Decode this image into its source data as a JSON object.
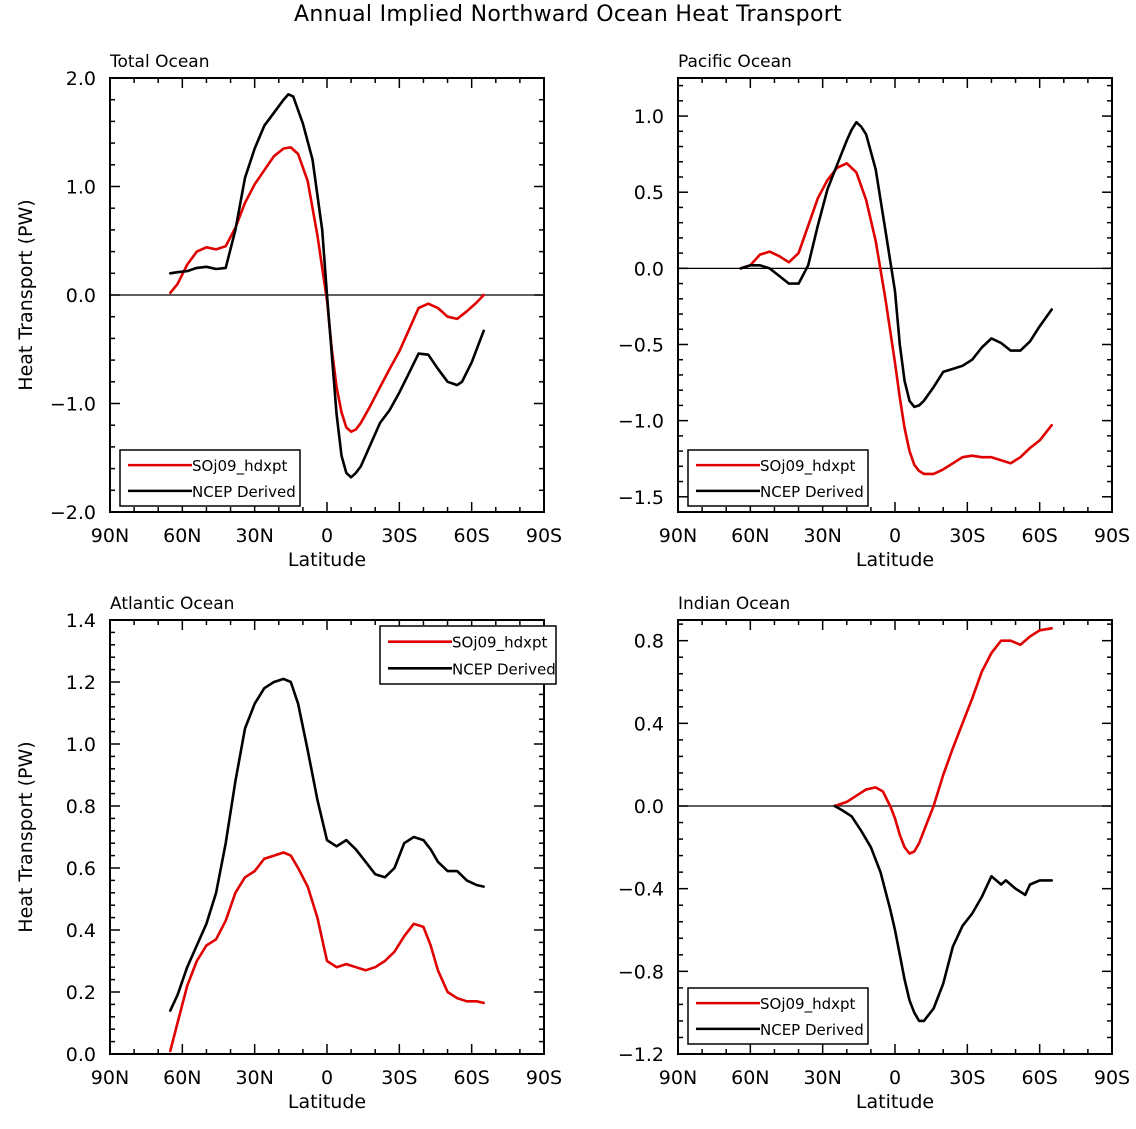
{
  "figure_title": "Annual Implied Northward Ocean Heat Transport",
  "colors": {
    "model": "#e00000",
    "obs": "#000000",
    "zero_line": "#000000"
  },
  "chart_data": [
    {
      "type": "line",
      "title": "Total Ocean",
      "xlabel": "Latitude",
      "ylabel": "Heat Transport (PW)",
      "xlim": [
        90,
        -90
      ],
      "x_ticks": [
        90,
        60,
        30,
        0,
        -30,
        -60,
        -90
      ],
      "x_tick_labels": [
        "90N",
        "60N",
        "30N",
        "0",
        "30S",
        "60S",
        "90S"
      ],
      "ylim": [
        -2.0,
        2.0
      ],
      "y_ticks": [
        -2.0,
        -1.0,
        0.0,
        1.0,
        2.0
      ],
      "y_tick_labels": [
        "−2.0",
        "−1.0",
        "0.0",
        "1.0",
        "2.0"
      ],
      "legend_position": "bottom-left",
      "series": [
        {
          "name": "SOj09_hdxpt",
          "x": [
            65,
            62,
            58,
            54,
            50,
            46,
            42,
            38,
            34,
            30,
            26,
            22,
            18,
            15,
            12,
            8,
            4,
            0,
            -2,
            -4,
            -6,
            -8,
            -10,
            -12,
            -14,
            -18,
            -22,
            -26,
            -30,
            -34,
            -38,
            -42,
            -46,
            -50,
            -54,
            -58,
            -62,
            -65
          ],
          "values": [
            0.02,
            0.1,
            0.28,
            0.4,
            0.44,
            0.42,
            0.45,
            0.62,
            0.85,
            1.02,
            1.15,
            1.28,
            1.35,
            1.36,
            1.3,
            1.05,
            0.55,
            -0.05,
            -0.5,
            -0.85,
            -1.08,
            -1.22,
            -1.26,
            -1.24,
            -1.18,
            -1.02,
            -0.85,
            -0.68,
            -0.52,
            -0.32,
            -0.12,
            -0.08,
            -0.12,
            -0.2,
            -0.22,
            -0.15,
            -0.07,
            0.0
          ]
        },
        {
          "name": "NCEP Derived",
          "x": [
            65,
            62,
            58,
            54,
            50,
            46,
            42,
            38,
            34,
            30,
            26,
            22,
            18,
            16,
            14,
            10,
            6,
            2,
            0,
            -2,
            -4,
            -6,
            -8,
            -10,
            -12,
            -14,
            -18,
            -22,
            -26,
            -30,
            -34,
            -38,
            -42,
            -46,
            -50,
            -54,
            -56,
            -60,
            -65
          ],
          "values": [
            0.2,
            0.21,
            0.22,
            0.25,
            0.26,
            0.24,
            0.25,
            0.6,
            1.08,
            1.35,
            1.56,
            1.68,
            1.8,
            1.85,
            1.83,
            1.58,
            1.25,
            0.6,
            0.0,
            -0.55,
            -1.1,
            -1.48,
            -1.64,
            -1.68,
            -1.64,
            -1.58,
            -1.38,
            -1.18,
            -1.06,
            -0.9,
            -0.72,
            -0.54,
            -0.55,
            -0.68,
            -0.8,
            -0.83,
            -0.8,
            -0.62,
            -0.33
          ]
        }
      ]
    },
    {
      "type": "line",
      "title": "Pacific Ocean",
      "xlabel": "Latitude",
      "ylabel": "",
      "xlim": [
        90,
        -90
      ],
      "x_ticks": [
        90,
        60,
        30,
        0,
        -30,
        -60,
        -90
      ],
      "x_tick_labels": [
        "90N",
        "60N",
        "30N",
        "0",
        "30S",
        "60S",
        "90S"
      ],
      "ylim": [
        -1.6,
        1.25
      ],
      "y_ticks": [
        -1.5,
        -1.0,
        -0.5,
        0.0,
        0.5,
        1.0
      ],
      "y_tick_labels": [
        "−1.5",
        "−1.0",
        "−0.5",
        "0.0",
        "0.5",
        "1.0"
      ],
      "legend_position": "bottom-left",
      "series": [
        {
          "name": "SOj09_hdxpt",
          "x": [
            64,
            60,
            56,
            52,
            48,
            44,
            40,
            36,
            32,
            28,
            24,
            20,
            16,
            12,
            8,
            4,
            0,
            -2,
            -4,
            -6,
            -8,
            -10,
            -12,
            -16,
            -20,
            -24,
            -28,
            -32,
            -36,
            -40,
            -44,
            -48,
            -52,
            -56,
            -60,
            -65
          ],
          "values": [
            0.0,
            0.02,
            0.09,
            0.11,
            0.08,
            0.04,
            0.1,
            0.28,
            0.46,
            0.58,
            0.66,
            0.69,
            0.63,
            0.45,
            0.18,
            -0.2,
            -0.62,
            -0.85,
            -1.05,
            -1.2,
            -1.29,
            -1.33,
            -1.35,
            -1.35,
            -1.32,
            -1.28,
            -1.24,
            -1.23,
            -1.24,
            -1.24,
            -1.26,
            -1.28,
            -1.24,
            -1.18,
            -1.13,
            -1.03
          ]
        },
        {
          "name": "NCEP Derived",
          "x": [
            64,
            60,
            56,
            52,
            48,
            44,
            40,
            36,
            32,
            28,
            24,
            20,
            18,
            16,
            14,
            12,
            8,
            4,
            0,
            -2,
            -4,
            -6,
            -8,
            -10,
            -12,
            -16,
            -20,
            -24,
            -28,
            -32,
            -36,
            -40,
            -44,
            -48,
            -52,
            -56,
            -60,
            -65
          ],
          "values": [
            0.0,
            0.02,
            0.02,
            0.0,
            -0.05,
            -0.1,
            -0.1,
            0.02,
            0.28,
            0.52,
            0.68,
            0.84,
            0.91,
            0.96,
            0.93,
            0.88,
            0.65,
            0.25,
            -0.15,
            -0.5,
            -0.74,
            -0.87,
            -0.91,
            -0.9,
            -0.87,
            -0.78,
            -0.68,
            -0.66,
            -0.64,
            -0.6,
            -0.52,
            -0.46,
            -0.49,
            -0.54,
            -0.54,
            -0.48,
            -0.38,
            -0.27
          ]
        }
      ]
    },
    {
      "type": "line",
      "title": "Atlantic Ocean",
      "xlabel": "Latitude",
      "ylabel": "Heat Transport (PW)",
      "xlim": [
        90,
        -90
      ],
      "x_ticks": [
        90,
        60,
        30,
        0,
        -30,
        -60,
        -90
      ],
      "x_tick_labels": [
        "90N",
        "60N",
        "30N",
        "0",
        "30S",
        "60S",
        "90S"
      ],
      "ylim": [
        0.0,
        1.4
      ],
      "y_ticks": [
        0.0,
        0.2,
        0.4,
        0.6,
        0.8,
        1.0,
        1.2,
        1.4
      ],
      "y_tick_labels": [
        "0.0",
        "0.2",
        "0.4",
        "0.6",
        "0.8",
        "1.0",
        "1.2",
        "1.4"
      ],
      "legend_position": "top-right",
      "series": [
        {
          "name": "SOj09_hdxpt",
          "x": [
            65,
            62,
            58,
            54,
            50,
            46,
            42,
            38,
            34,
            30,
            26,
            22,
            18,
            15,
            12,
            8,
            4,
            0,
            -4,
            -8,
            -12,
            -16,
            -20,
            -24,
            -28,
            -32,
            -36,
            -40,
            -43,
            -46,
            -50,
            -54,
            -58,
            -62,
            -65
          ],
          "values": [
            0.01,
            0.1,
            0.22,
            0.3,
            0.35,
            0.37,
            0.43,
            0.52,
            0.57,
            0.59,
            0.63,
            0.64,
            0.65,
            0.64,
            0.6,
            0.54,
            0.44,
            0.3,
            0.28,
            0.29,
            0.28,
            0.27,
            0.28,
            0.3,
            0.33,
            0.38,
            0.42,
            0.41,
            0.35,
            0.27,
            0.2,
            0.18,
            0.17,
            0.17,
            0.165
          ]
        },
        {
          "name": "NCEP Derived",
          "x": [
            65,
            62,
            58,
            54,
            50,
            46,
            42,
            38,
            34,
            30,
            26,
            22,
            18,
            15,
            12,
            8,
            4,
            0,
            -4,
            -8,
            -12,
            -16,
            -20,
            -24,
            -28,
            -32,
            -36,
            -40,
            -43,
            -46,
            -50,
            -54,
            -58,
            -62,
            -65
          ],
          "values": [
            0.14,
            0.19,
            0.28,
            0.35,
            0.42,
            0.52,
            0.68,
            0.88,
            1.05,
            1.13,
            1.18,
            1.2,
            1.21,
            1.2,
            1.13,
            0.98,
            0.82,
            0.69,
            0.67,
            0.69,
            0.66,
            0.62,
            0.58,
            0.57,
            0.6,
            0.68,
            0.7,
            0.69,
            0.66,
            0.62,
            0.59,
            0.59,
            0.56,
            0.545,
            0.54
          ]
        }
      ]
    },
    {
      "type": "line",
      "title": "Indian Ocean",
      "xlabel": "Latitude",
      "ylabel": "",
      "xlim": [
        90,
        -90
      ],
      "x_ticks": [
        90,
        60,
        30,
        0,
        -30,
        -60,
        -90
      ],
      "x_tick_labels": [
        "90N",
        "60N",
        "30N",
        "0",
        "30S",
        "60S",
        "90S"
      ],
      "ylim": [
        -1.2,
        0.9
      ],
      "y_ticks": [
        -1.2,
        -0.8,
        -0.4,
        0.0,
        0.4,
        0.8
      ],
      "y_tick_labels": [
        "−1.2",
        "−0.8",
        "−0.4",
        "0.0",
        "0.4",
        "0.8"
      ],
      "legend_position": "bottom-left",
      "series": [
        {
          "name": "SOj09_hdxpt",
          "x": [
            25,
            20,
            16,
            12,
            8,
            5,
            2,
            0,
            -2,
            -4,
            -6,
            -8,
            -10,
            -12,
            -16,
            -20,
            -24,
            -28,
            -32,
            -36,
            -40,
            -44,
            -48,
            -52,
            -56,
            -60,
            -65
          ],
          "values": [
            0.0,
            0.02,
            0.05,
            0.08,
            0.09,
            0.07,
            0.0,
            -0.06,
            -0.14,
            -0.2,
            -0.23,
            -0.22,
            -0.18,
            -0.12,
            0.0,
            0.15,
            0.28,
            0.4,
            0.52,
            0.65,
            0.74,
            0.8,
            0.8,
            0.78,
            0.82,
            0.85,
            0.86
          ]
        },
        {
          "name": "NCEP Derived",
          "x": [
            25,
            22,
            18,
            14,
            10,
            6,
            2,
            0,
            -2,
            -4,
            -6,
            -8,
            -10,
            -12,
            -16,
            -20,
            -24,
            -28,
            -32,
            -36,
            -40,
            -44,
            -46,
            -50,
            -54,
            -56,
            -60,
            -65
          ],
          "values": [
            0.0,
            -0.02,
            -0.05,
            -0.12,
            -0.2,
            -0.32,
            -0.5,
            -0.6,
            -0.72,
            -0.84,
            -0.94,
            -1.0,
            -1.04,
            -1.04,
            -0.98,
            -0.86,
            -0.68,
            -0.58,
            -0.52,
            -0.44,
            -0.34,
            -0.38,
            -0.36,
            -0.4,
            -0.43,
            -0.38,
            -0.36,
            -0.36
          ]
        }
      ]
    }
  ]
}
